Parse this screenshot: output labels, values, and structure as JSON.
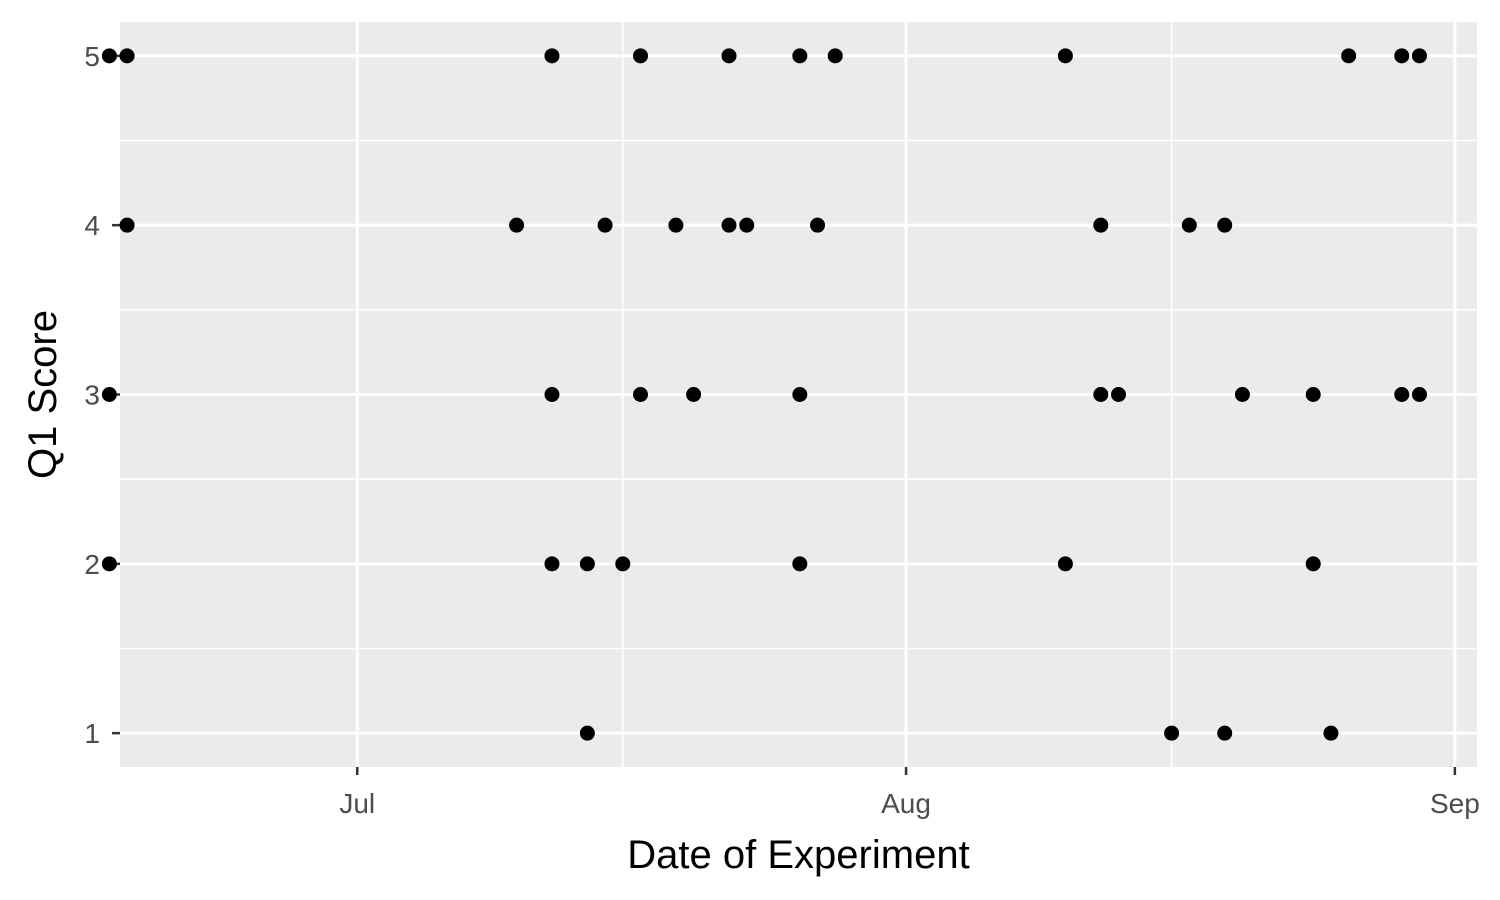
{
  "chart_data": {
    "type": "scatter",
    "title": "",
    "xlabel": "Date of Experiment",
    "ylabel": "Q1 Score",
    "x_type": "date",
    "xlim": [
      "2025-06-20",
      "2025-09-01"
    ],
    "ylim": [
      0.8,
      5.2
    ],
    "x_tick_labels": [
      {
        "date": "2025-07-01",
        "label": "Jul"
      },
      {
        "date": "2025-08-01",
        "label": "Aug"
      },
      {
        "date": "2025-09-01",
        "label": "Sep"
      }
    ],
    "x_minor_ticks": [
      "2025-06-16",
      "2025-07-16",
      "2025-08-16"
    ],
    "y_ticks": [
      1,
      2,
      3,
      4,
      5
    ],
    "y_minor_ticks": [
      1.5,
      2.5,
      3.5,
      4.5
    ],
    "grid": true,
    "panel_background": "#ebebeb",
    "grid_color": "#ffffff",
    "point_color": "#000000",
    "series": [
      {
        "points": [
          {
            "x": "2025-06-17",
            "y": 5
          },
          {
            "x": "2025-06-18",
            "y": 5
          },
          {
            "x": "2025-06-18",
            "y": 4
          },
          {
            "x": "2025-06-17",
            "y": 3
          },
          {
            "x": "2025-06-17",
            "y": 2
          },
          {
            "x": "2025-07-10",
            "y": 4
          },
          {
            "x": "2025-07-12",
            "y": 5
          },
          {
            "x": "2025-07-12",
            "y": 3
          },
          {
            "x": "2025-07-12",
            "y": 2
          },
          {
            "x": "2025-07-14",
            "y": 2
          },
          {
            "x": "2025-07-14",
            "y": 1
          },
          {
            "x": "2025-07-15",
            "y": 4
          },
          {
            "x": "2025-07-16",
            "y": 2
          },
          {
            "x": "2025-07-17",
            "y": 5
          },
          {
            "x": "2025-07-17",
            "y": 3
          },
          {
            "x": "2025-07-19",
            "y": 4
          },
          {
            "x": "2025-07-20",
            "y": 3
          },
          {
            "x": "2025-07-22",
            "y": 5
          },
          {
            "x": "2025-07-22",
            "y": 4
          },
          {
            "x": "2025-07-23",
            "y": 4
          },
          {
            "x": "2025-07-26",
            "y": 5
          },
          {
            "x": "2025-07-26",
            "y": 3
          },
          {
            "x": "2025-07-26",
            "y": 2
          },
          {
            "x": "2025-07-27",
            "y": 4
          },
          {
            "x": "2025-07-28",
            "y": 5
          },
          {
            "x": "2025-08-10",
            "y": 5
          },
          {
            "x": "2025-08-10",
            "y": 2
          },
          {
            "x": "2025-08-12",
            "y": 4
          },
          {
            "x": "2025-08-12",
            "y": 3
          },
          {
            "x": "2025-08-13",
            "y": 3
          },
          {
            "x": "2025-08-16",
            "y": 1
          },
          {
            "x": "2025-08-17",
            "y": 4
          },
          {
            "x": "2025-08-19",
            "y": 4
          },
          {
            "x": "2025-08-19",
            "y": 1
          },
          {
            "x": "2025-08-20",
            "y": 3
          },
          {
            "x": "2025-08-24",
            "y": 2
          },
          {
            "x": "2025-08-24",
            "y": 3
          },
          {
            "x": "2025-08-25",
            "y": 1
          },
          {
            "x": "2025-08-26",
            "y": 5
          },
          {
            "x": "2025-08-29",
            "y": 5
          },
          {
            "x": "2025-08-29",
            "y": 3
          },
          {
            "x": "2025-08-30",
            "y": 5
          },
          {
            "x": "2025-08-30",
            "y": 3
          }
        ]
      }
    ]
  }
}
